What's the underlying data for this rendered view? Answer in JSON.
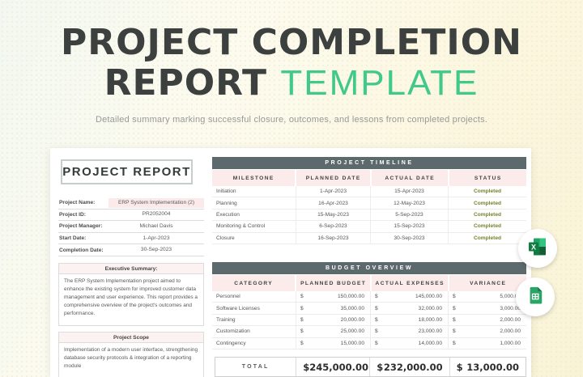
{
  "header": {
    "title_line1": "PROJECT COMPLETION",
    "title_line2_dark": "REPORT",
    "title_line2_green": "TEMPLATE",
    "subtitle": "Detailed summary marking successful closure, outcomes, and lessons from completed projects."
  },
  "report": {
    "title": "PROJECT REPORT",
    "fields": [
      {
        "label": "Project Name:",
        "value": "ERP System Implementation (2)",
        "highlight": true
      },
      {
        "label": "Project ID:",
        "value": "PR2052004",
        "highlight": false
      },
      {
        "label": "Project Manager:",
        "value": "Michael Davis",
        "highlight": false
      },
      {
        "label": "Start Date:",
        "value": "1-Apr-2023",
        "highlight": false
      },
      {
        "label": "Completion Date:",
        "value": "30-Sep-2023",
        "highlight": false
      }
    ],
    "executive_summary": {
      "title": "Executive Summary:",
      "body": "The ERP System Implementation project aimed to enhance the existing system for improved customer data management and user experience. This report provides a comprehensive overview of the project's outcomes and performance."
    },
    "project_scope": {
      "title": "Project Scope",
      "body": "Implementation of a modern user interface, strengthening database security protocols & integration of a reporting module"
    }
  },
  "timeline": {
    "title": "PROJECT TIMELINE",
    "columns": [
      "MILESTONE",
      "PLANNED DATE",
      "ACTUAL DATE",
      "STATUS"
    ],
    "rows": [
      {
        "milestone": "Initiation",
        "planned": "1-Apr-2023",
        "actual": "15-Apr-2023",
        "status": "Completed"
      },
      {
        "milestone": "Planning",
        "planned": "16-Apr-2023",
        "actual": "12-May-2023",
        "status": "Completed"
      },
      {
        "milestone": "Execution",
        "planned": "15-May-2023",
        "actual": "5-Sep-2023",
        "status": "Completed"
      },
      {
        "milestone": "Monitoring & Control",
        "planned": "6-Sep-2023",
        "actual": "15-Sep-2023",
        "status": "Completed"
      },
      {
        "milestone": "Closure",
        "planned": "16-Sep-2023",
        "actual": "30-Sep-2023",
        "status": "Completed"
      }
    ]
  },
  "budget": {
    "title": "BUDGET OVERVIEW",
    "columns": [
      "CATEGORY",
      "PLANNED BUDGET",
      "ACTUAL EXPENSES",
      "VARIANCE"
    ],
    "currency": "$",
    "rows": [
      {
        "category": "Personnel",
        "planned": "150,000.00",
        "actual": "145,000.00",
        "variance": "5,000.00"
      },
      {
        "category": "Software Licenses",
        "planned": "35,000.00",
        "actual": "32,000.00",
        "variance": "3,000.00"
      },
      {
        "category": "Training",
        "planned": "20,000.00",
        "actual": "18,000.00",
        "variance": "2,000.00"
      },
      {
        "category": "Customization",
        "planned": "25,000.00",
        "actual": "23,000.00",
        "variance": "2,000.00"
      },
      {
        "category": "Contingency",
        "planned": "15,000.00",
        "actual": "14,000.00",
        "variance": "1,000.00"
      }
    ],
    "total": {
      "label": "TOTAL",
      "planned": "245,000.00",
      "actual": "232,000.00",
      "variance": "13,000.00"
    }
  },
  "badges": {
    "excel_label": "Microsoft Excel",
    "gsheets_label": "Google Sheets"
  },
  "colors": {
    "title-green": "#41c98c",
    "bar": "#5c6a6d",
    "pink": "#fcebeb",
    "pink-hl": "#fce9e9",
    "status": "#75832f"
  }
}
